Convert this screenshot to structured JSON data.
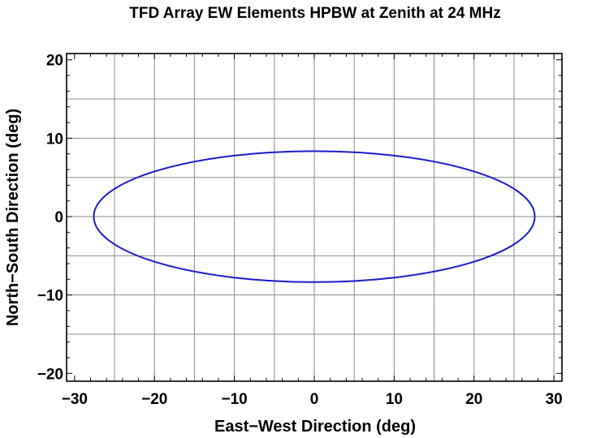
{
  "chart_data": {
    "type": "line",
    "title": "TFD Array EW Elements HPBW at Zenith at 24 MHz",
    "xlabel": "East−West Direction (deg)",
    "ylabel": "North−South Direction (deg)",
    "xlim": [
      -31,
      31
    ],
    "ylim": [
      -21,
      20.8
    ],
    "xticks": [
      -30,
      -20,
      -10,
      0,
      10,
      20,
      30
    ],
    "yticks": [
      -20,
      -10,
      0,
      10,
      20
    ],
    "xtick_labels": [
      "−30",
      "−20",
      "−10",
      "0",
      "10",
      "20",
      "30"
    ],
    "ytick_labels": [
      "−20",
      "−10",
      "0",
      "10",
      "20"
    ],
    "grid": true,
    "x_grid": [
      -25,
      -20,
      -15,
      -10,
      -5,
      0,
      5,
      10,
      15,
      20,
      25,
      30
    ],
    "y_grid": [
      -15,
      -10,
      -5,
      0,
      5,
      10,
      15
    ],
    "series": [
      {
        "shape": "ellipse",
        "center": [
          0,
          0
        ],
        "semi_axis_x": 27.6,
        "semi_axis_y": 8.35,
        "color": "#1a1acc"
      }
    ]
  }
}
